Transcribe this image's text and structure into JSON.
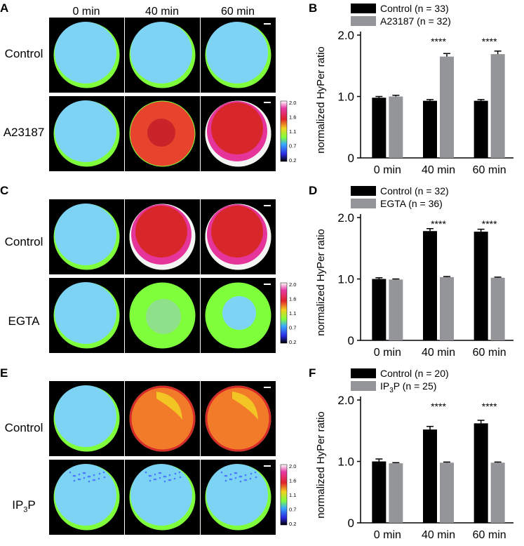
{
  "figure": {
    "col_headers": [
      "0 min",
      "40 min",
      "60 min"
    ],
    "colorbar_ticks": [
      "2.0",
      "1.6",
      "1.1",
      "0.7",
      "0.2"
    ],
    "rows": [
      {
        "letter": "A",
        "labels": [
          "Control",
          "A23187"
        ]
      },
      {
        "letter": "C",
        "labels": [
          "Control",
          "EGTA"
        ]
      },
      {
        "letter": "E",
        "labels": [
          "Control",
          "IP",
          "3",
          "P"
        ]
      }
    ]
  },
  "colors": {
    "control": "#000000",
    "treatment": "#939598",
    "error": "#000000"
  },
  "chart_data": [
    {
      "panel": "B",
      "type": "bar",
      "categories": [
        "0 min",
        "40 min",
        "60 min"
      ],
      "ylabel": "normalized HyPer ratio",
      "ylim": [
        0,
        2.0
      ],
      "yticks": [
        "0",
        "1.0",
        "2.0"
      ],
      "series": [
        {
          "name": "Control (n = 33)",
          "values": [
            0.98,
            0.93,
            0.93
          ],
          "errors": [
            0.02,
            0.02,
            0.02
          ]
        },
        {
          "name": "A23187 (n = 32)",
          "values": [
            1.0,
            1.65,
            1.69
          ],
          "errors": [
            0.02,
            0.05,
            0.05
          ]
        }
      ],
      "annotations": [
        "",
        "****",
        "****"
      ]
    },
    {
      "panel": "D",
      "type": "bar",
      "categories": [
        "0 min",
        "40 min",
        "60 min"
      ],
      "ylabel": "normalized HyPer ratio",
      "ylim": [
        0,
        2.0
      ],
      "yticks": [
        "0",
        "1.0",
        "2.0"
      ],
      "series": [
        {
          "name": "Control (n = 32)",
          "values": [
            1.0,
            1.78,
            1.77
          ],
          "errors": [
            0.02,
            0.04,
            0.04
          ]
        },
        {
          "name": "EGTA (n = 36)",
          "values": [
            0.99,
            1.03,
            1.02
          ],
          "errors": [
            0.01,
            0.01,
            0.01
          ]
        }
      ],
      "annotations": [
        "",
        "****",
        "****"
      ]
    },
    {
      "panel": "F",
      "type": "bar",
      "categories": [
        "0 min",
        "40 min",
        "60 min"
      ],
      "ylabel": "normalized HyPer ratio",
      "ylim": [
        0,
        2.0
      ],
      "yticks": [
        "0",
        "1.0",
        "2.0"
      ],
      "series": [
        {
          "name": "Control (n = 20)",
          "label_parts": [
            "Control (n = 20)"
          ],
          "values": [
            1.0,
            1.52,
            1.62
          ],
          "errors": [
            0.04,
            0.05,
            0.05
          ]
        },
        {
          "name": "IP3P (n = 25)",
          "label_parts": [
            "IP",
            "3",
            "P (n = 25)"
          ],
          "values": [
            0.97,
            0.98,
            0.98
          ],
          "errors": [
            0.01,
            0.01,
            0.01
          ]
        }
      ],
      "annotations": [
        "",
        "****",
        "****"
      ]
    }
  ]
}
